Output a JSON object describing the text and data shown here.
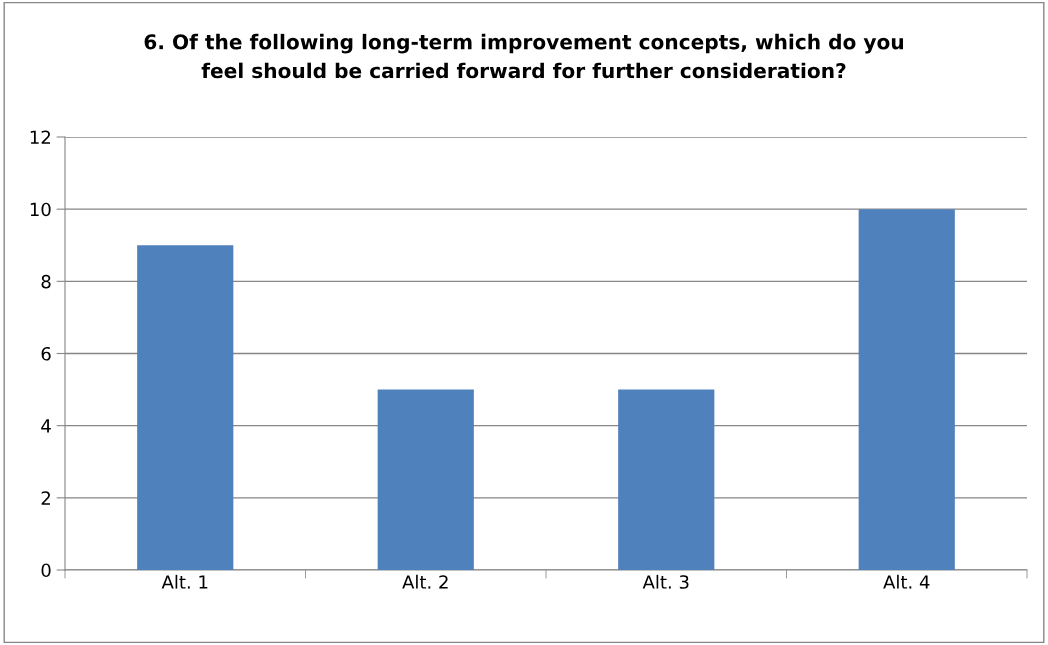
{
  "chart_data": {
    "type": "bar",
    "title": "6. Of the following long-term improvement concepts, which do you\nfeel should be carried forward for further consideration?",
    "categories": [
      "Alt. 1",
      "Alt. 2",
      "Alt. 3",
      "Alt. 4"
    ],
    "values": [
      9,
      5,
      5,
      10
    ],
    "color": "#4f81bd",
    "ylim": [
      0,
      12
    ],
    "yticks": [
      0,
      2,
      4,
      6,
      8,
      10,
      12
    ],
    "grid": "y",
    "legend": false
  }
}
